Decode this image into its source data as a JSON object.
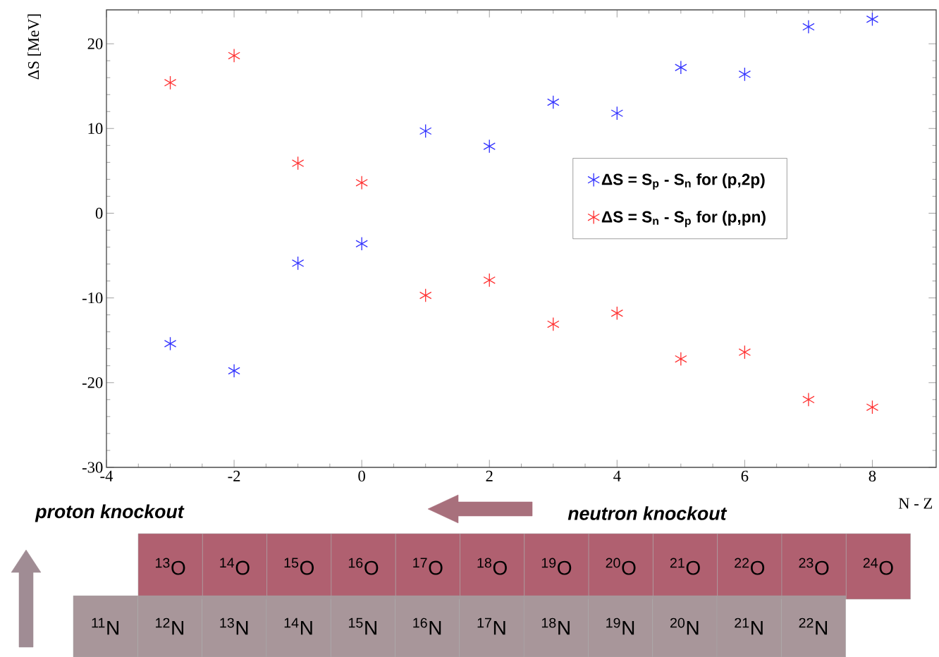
{
  "chart_data": {
    "type": "scatter",
    "xlabel": "N - Z",
    "ylabel": "ΔS [MeV]",
    "x": [
      -3,
      -2,
      -1,
      0,
      1,
      2,
      3,
      4,
      5,
      6,
      7,
      8
    ],
    "series": [
      {
        "name": "ΔS = S$_{p}$ - S$_{n}$ for (p,2p)",
        "color": "#3333ff",
        "values": [
          -15.4,
          -18.6,
          -5.9,
          -3.6,
          9.7,
          7.9,
          13.1,
          11.8,
          17.2,
          16.4,
          22.0,
          22.9
        ]
      },
      {
        "name": "ΔS = S$_{n}$ - S$_{p}$ for (p,pn)",
        "color": "#ff3333",
        "values": [
          15.4,
          18.6,
          5.9,
          3.6,
          -9.7,
          -7.9,
          -13.1,
          -11.8,
          -17.2,
          -16.4,
          -22.0,
          -22.9
        ]
      }
    ],
    "xlim": [
      -4,
      9
    ],
    "ylim": [
      -30,
      24
    ],
    "xticks": [
      -4,
      -2,
      0,
      2,
      4,
      6,
      8
    ],
    "yticks": [
      -30,
      -20,
      -10,
      0,
      10,
      20
    ],
    "marker": "cross",
    "legend": "right",
    "grid": false,
    "annotations": [
      "proton knockout",
      "neutron knockout",
      "$^{13}$O",
      "$^{14}$O",
      "$^{15}$O",
      "$^{16}$O",
      "$^{17}$O",
      "$^{18}$O",
      "$^{19}$O",
      "$^{20}$O",
      "$^{21}$O",
      "$^{22}$O",
      "$^{23}$O",
      "$^{24}$O",
      "$^{11}$N",
      "$^{12}$N",
      "$^{13}$N",
      "$^{14}$N",
      "$^{15}$N",
      "$^{16}$N",
      "$^{17}$N",
      "$^{18}$N",
      "$^{19}$N",
      "$^{20}$N",
      "$^{21}$N",
      "$^{22}$N"
    ]
  }
}
